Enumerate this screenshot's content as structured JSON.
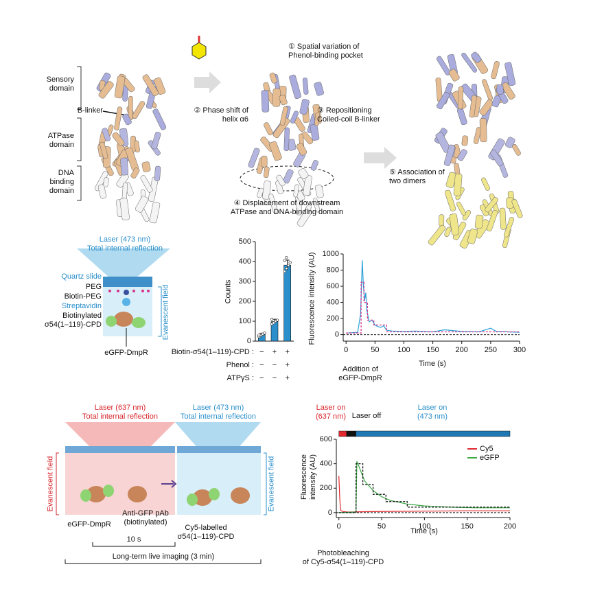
{
  "panel_structure": {
    "labels": [
      "Sensory\ndomain",
      "B-linker",
      "ATPase\ndomain",
      "DNA\nbinding\ndomain"
    ],
    "notes": [
      "① Spatial variation of\nPhenol-binding pocket",
      "② Phase shift of\nhelix α6",
      "③ Repositioning\nCoiled-coil B-linker",
      "④ Displacement of downstream\nATPase and DNA-binding domain",
      "⑤ Association of\ntwo dimers"
    ]
  },
  "panel_single_molecule": {
    "laser": "Laser (473 nm)\nTotal internal reflection",
    "layers": [
      "Quartz slide",
      "PEG",
      "Biotin-PEG",
      "Streptavidin",
      "Biotinylated\nσ54(1–119)-CPD"
    ],
    "field": "Evanescent field",
    "protein": "eGFP-DmpR"
  },
  "panel_live": {
    "laser_red": "Laser (637 nm)\nTotal internal reflection",
    "laser_blue": "Laser (473 nm)\nTotal internal reflection",
    "field_red": "Evanescent field",
    "field_blue": "Evanescent field",
    "protein": "eGFP-DmpR",
    "antibody": "Anti-GFP pAb\n(biotinylated)",
    "cy5": "Cy5-labelled\nσ54(1–119)-CPD",
    "interval": "10 s",
    "duration": "Long-term live imaging (3 min)"
  },
  "chart_data": [
    {
      "type": "bar",
      "ylabel": "Counts",
      "color": "#2a8fcb",
      "values": [
        32,
        98,
        382
      ],
      "errors": [
        8,
        12,
        25
      ],
      "points": [
        [
          22,
          28,
          35,
          40,
          30
        ],
        [
          85,
          92,
          100,
          105,
          110
        ],
        [
          350,
          365,
          380,
          395,
          405,
          420
        ]
      ],
      "ylim": [
        0,
        500
      ],
      "yticks": [
        0,
        100,
        200,
        300,
        400,
        500
      ],
      "conditions": [
        {
          "label": "Biotin-σ54(1–119)-CPD :",
          "signs": [
            "−",
            "+",
            "+"
          ]
        },
        {
          "label": "Phenol :",
          "signs": [
            "−",
            "−",
            "+"
          ]
        },
        {
          "label": "ATPγS :",
          "signs": [
            "−",
            "−",
            "+"
          ]
        }
      ]
    },
    {
      "type": "line",
      "ylabel": "Fluorescence intensity (AU)",
      "xlabel": "Time (s)",
      "xlim": [
        -5,
        300
      ],
      "xticks": [
        0,
        50,
        100,
        150,
        200,
        250,
        300
      ],
      "ylim": [
        -80,
        1000
      ],
      "yticks": [
        0,
        200,
        400,
        600,
        800,
        1000
      ],
      "baseline": 0,
      "annotation": "Addition of\neGFP-DmpR",
      "series": [
        {
          "color": "#2a9fd6",
          "dashed": false,
          "x": [
            0,
            10,
            20,
            25,
            27,
            28,
            30,
            32,
            34,
            36,
            40,
            45,
            50,
            55,
            60,
            65,
            70,
            80,
            100,
            120,
            150,
            170,
            200,
            230,
            250,
            260,
            280,
            300
          ],
          "values": [
            20,
            25,
            30,
            250,
            700,
            920,
            600,
            420,
            520,
            300,
            160,
            180,
            120,
            100,
            90,
            110,
            55,
            45,
            40,
            45,
            35,
            60,
            40,
            35,
            80,
            40,
            35,
            30
          ]
        },
        {
          "color": "#d6338a",
          "dashed": true,
          "x": [
            0,
            26,
            26,
            31,
            31,
            37,
            37,
            48,
            48,
            70,
            70,
            300
          ],
          "values": [
            20,
            20,
            650,
            650,
            400,
            400,
            180,
            180,
            120,
            120,
            35,
            35
          ]
        }
      ]
    },
    {
      "type": "line",
      "ylabel": "Fluorescence\nintensity (AU)",
      "xlabel": "Time (s)",
      "xlim": [
        -3,
        200
      ],
      "xticks": [
        0,
        50,
        100,
        150,
        200
      ],
      "ylim": [
        -40,
        600
      ],
      "yticks": [
        0,
        200,
        400,
        600
      ],
      "baseline": 0,
      "annotation": "Photobleaching\nof Cy5-σ54(1–119)-CPD",
      "laser_bar": [
        {
          "label": "Laser on\n(637 nm)",
          "start": 0,
          "end": 9,
          "color": "#e0282e"
        },
        {
          "label": "Laser off",
          "start": 9,
          "end": 20,
          "color": "#111111"
        },
        {
          "label": "Laser on\n(473 nm)",
          "start": 20,
          "end": 200,
          "color": "#1f77b4"
        }
      ],
      "series": [
        {
          "name": "Cy5",
          "color": "#e0282e",
          "dashed": false,
          "x": [
            0,
            1,
            2,
            4,
            10,
            30,
            60,
            100,
            150,
            200
          ],
          "values": [
            300,
            120,
            20,
            10,
            5,
            8,
            10,
            12,
            15,
            15
          ]
        },
        {
          "name": "eGFP",
          "color": "#3aa845",
          "dashed": false,
          "x": [
            0,
            20,
            21,
            25,
            30,
            40,
            50,
            60,
            80,
            100,
            130,
            160,
            200
          ],
          "values": [
            0,
            5,
            420,
            350,
            260,
            180,
            130,
            100,
            70,
            55,
            45,
            40,
            40
          ]
        },
        {
          "color": "#111111",
          "dashed": true,
          "x": [
            0,
            20,
            20,
            28,
            28,
            40,
            40,
            55,
            55,
            80,
            80,
            200
          ],
          "values": [
            0,
            0,
            400,
            400,
            230,
            230,
            150,
            150,
            90,
            90,
            45,
            45
          ]
        }
      ]
    }
  ]
}
